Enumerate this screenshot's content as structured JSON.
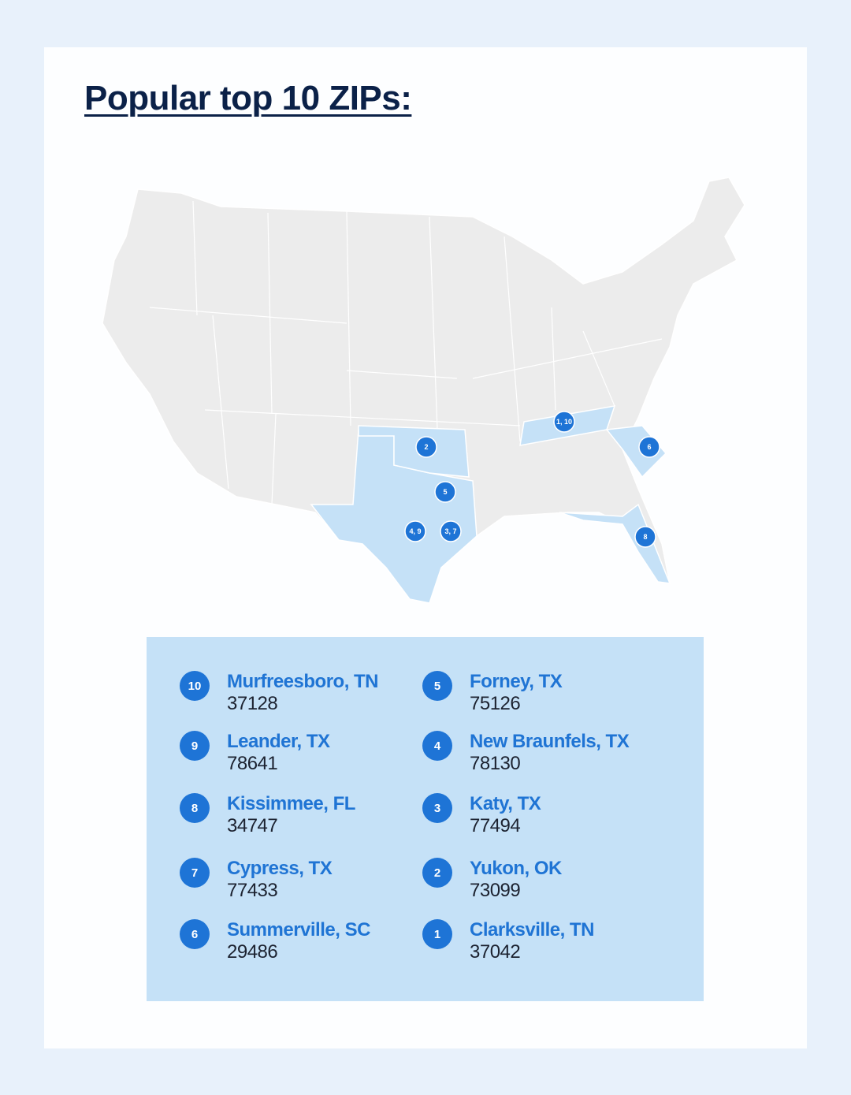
{
  "header": {
    "title": "Popular top 10 ZIPs:"
  },
  "map": {
    "markers": [
      "1, 10",
      "2",
      "5",
      "4, 9",
      "3, 7",
      "6",
      "8"
    ]
  },
  "list": {
    "left": [
      {
        "rank": "10",
        "city": "Murfreesboro, TN",
        "zip": "37128"
      },
      {
        "rank": "9",
        "city": "Leander, TX",
        "zip": "78641"
      },
      {
        "rank": "8",
        "city": "Kissimmee, FL",
        "zip": "34747"
      },
      {
        "rank": "7",
        "city": "Cypress, TX",
        "zip": "77433"
      },
      {
        "rank": "6",
        "city": "Summerville, SC",
        "zip": "29486"
      }
    ],
    "right": [
      {
        "rank": "5",
        "city": "Forney, TX",
        "zip": "75126"
      },
      {
        "rank": "4",
        "city": "New Braunfels, TX",
        "zip": "78130"
      },
      {
        "rank": "3",
        "city": "Katy, TX",
        "zip": "77494"
      },
      {
        "rank": "2",
        "city": "Yukon, OK",
        "zip": "73099"
      },
      {
        "rank": "1",
        "city": "Clarksville, TN",
        "zip": "37042"
      }
    ]
  }
}
